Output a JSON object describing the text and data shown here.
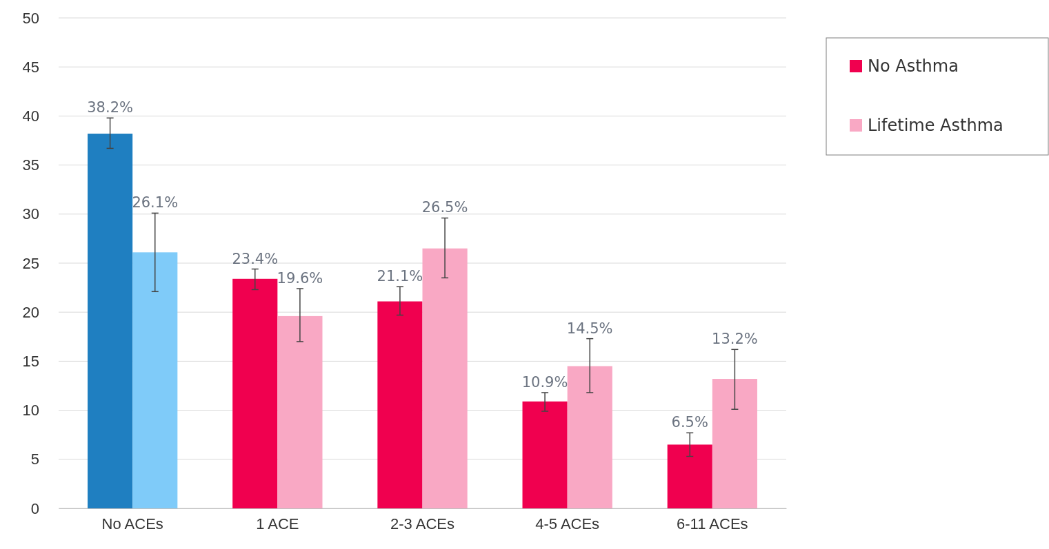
{
  "chart_data": {
    "type": "bar",
    "categories": [
      "No ACEs",
      "1 ACE",
      "2-3 ACEs",
      "4-5 ACEs",
      "6-11 ACEs"
    ],
    "series": [
      {
        "name": "No Asthma",
        "color": "#f0004f",
        "colors": [
          "#1f7fc1",
          "#f0004f",
          "#f0004f",
          "#f0004f",
          "#f0004f"
        ],
        "values": [
          38.2,
          23.4,
          21.1,
          10.9,
          6.5
        ],
        "errors": [
          [
            36.7,
            39.8
          ],
          [
            22.3,
            24.4
          ],
          [
            19.7,
            22.6
          ],
          [
            9.9,
            11.8
          ],
          [
            5.3,
            7.7
          ]
        ],
        "value_labels": [
          "38.2%",
          "23.4%",
          "21.1%",
          "10.9%",
          "6.5%"
        ]
      },
      {
        "name": "Lifetime Asthma",
        "color": "#f9a8c4",
        "colors": [
          "#7fcbf9",
          "#f9a8c4",
          "#f9a8c4",
          "#f9a8c4",
          "#f9a8c4"
        ],
        "values": [
          26.1,
          19.6,
          26.5,
          14.5,
          13.2
        ],
        "errors": [
          [
            22.1,
            30.1
          ],
          [
            17.0,
            22.4
          ],
          [
            23.5,
            29.6
          ],
          [
            11.8,
            17.3
          ],
          [
            10.1,
            16.2
          ]
        ],
        "value_labels": [
          "26.1%",
          "19.6%",
          "26.5%",
          "14.5%",
          "13.2%"
        ]
      }
    ],
    "ylim": [
      0,
      50
    ],
    "yticks": [
      0,
      5,
      10,
      15,
      20,
      25,
      30,
      35,
      40,
      45,
      50
    ],
    "grid": "y",
    "legend": "top right"
  }
}
